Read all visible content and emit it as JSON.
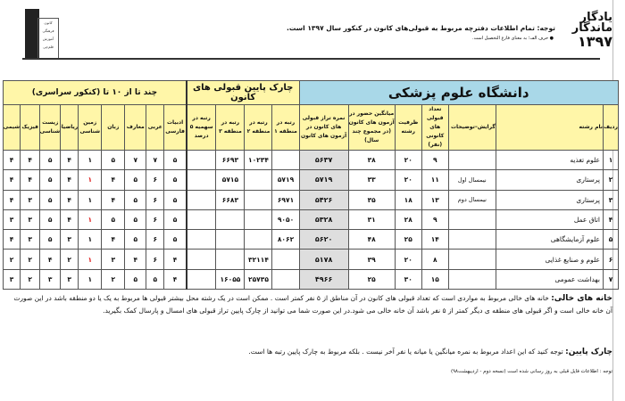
{
  "header": {
    "brand_line1": "یادگار",
    "brand_line2": "ماندگار",
    "brand_year": "۱۳۹۷",
    "notice": "توجه: تمام اطلاعات دفترچه مربوط به قبولی‌های کانون در کنکور سال ۱۳۹۷ است.",
    "subnote": "● حرف الف؛ به معنای فارغ التحصیل است.",
    "logo_text": [
      "کانون",
      "فرهنگی",
      "آموزش",
      "قلم‌چی"
    ]
  },
  "table": {
    "band_university": "دانشگاه علوم پزشکی",
    "band_chark": "چارک پایین قبولی های کانون",
    "band_subjects": "چند تا از ۱۰ تا (کنکور سراسری)",
    "columns": [
      "ردیف",
      "نام رشته",
      "گرایش–توضیحات",
      "تعداد قبولی های کانونی (نفر)",
      "ظرفیت رشته",
      "میانگین حضور در آزمون های کانون (در مجموع چند سال)",
      "نمره تراز قبولی های کانون در آزمون های کانون",
      "رتبه در منطقه ۱",
      "رتبه در منطقه ۲",
      "رتبه در منطقه ۳",
      "رتبه در سهمیه ۵ درصد",
      "ادبیات فارسی",
      "عربی",
      "معارف",
      "زبان",
      "زمین شناسی",
      "ریاضیات",
      "زیست شناسی",
      "فیزیک",
      "شیمی"
    ],
    "rows": [
      {
        "id": "۱",
        "name": "علوم تغذیه",
        "dir": "",
        "count": "۹",
        "cap": "۲۰",
        "avg": "۳۸",
        "score": "۵۶۳۷",
        "r1": "",
        "r2": "۱۰۲۳۴",
        "r3": "۶۶۹۳",
        "r5": "",
        "s": [
          "۵",
          "۷",
          "۷",
          "۵",
          "۱",
          "۴",
          "۵",
          "۴",
          "۴"
        ],
        "red": false
      },
      {
        "id": "۲",
        "name": "پرستاری",
        "dir": "نیمسال اول",
        "count": "۱۱",
        "cap": "۲۰",
        "avg": "۳۳",
        "score": "۵۷۱۹",
        "r1": "۵۷۱۹",
        "r2": "",
        "r3": "۵۷۱۵",
        "r5": "",
        "s": [
          "۵",
          "۶",
          "۵",
          "۴",
          "۱",
          "۴",
          "۵",
          "۴",
          "۴"
        ],
        "red": true
      },
      {
        "id": "۳",
        "name": "پرستاری",
        "dir": "نیمسال دوم",
        "count": "۱۳",
        "cap": "۱۸",
        "avg": "۳۵",
        "score": "۵۴۲۶",
        "r1": "۶۹۷۱",
        "r2": "",
        "r3": "۶۶۸۳",
        "r5": "",
        "s": [
          "۵",
          "۶",
          "۵",
          "۴",
          "۱",
          "۴",
          "۵",
          "۳",
          "۴"
        ],
        "red": false
      },
      {
        "id": "۴",
        "name": "اتاق عمل",
        "dir": "",
        "count": "۹",
        "cap": "۲۸",
        "avg": "۳۱",
        "score": "۵۳۲۸",
        "r1": "۹۰۵۰",
        "r2": "",
        "r3": "",
        "r5": "",
        "s": [
          "۵",
          "۶",
          "۵",
          "۵",
          "۱",
          "۴",
          "۵",
          "۳",
          "۳"
        ],
        "red": true
      },
      {
        "id": "۵",
        "name": "علوم آزمایشگاهی",
        "dir": "",
        "count": "۱۴",
        "cap": "۲۵",
        "avg": "۴۸",
        "score": "۵۶۲۰",
        "r1": "۸۰۶۲",
        "r2": "",
        "r3": "",
        "r5": "",
        "s": [
          "۵",
          "۶",
          "۵",
          "۴",
          "۱",
          "۳",
          "۵",
          "۳",
          "۴"
        ],
        "red": false
      },
      {
        "id": "۶",
        "name": "علوم و صنایع غذایی",
        "dir": "",
        "count": "۸",
        "cap": "۲۰",
        "avg": "۳۹",
        "score": "۵۱۷۸",
        "r1": "",
        "r2": "۳۲۱۱۴",
        "r3": "",
        "r5": "",
        "s": [
          "۴",
          "۶",
          "۴",
          "۳",
          "۱",
          "۲",
          "۴",
          "۲",
          "۲"
        ],
        "red": true
      },
      {
        "id": "۷",
        "name": "بهداشت عمومی",
        "dir": "",
        "count": "۱۵",
        "cap": "۳۰",
        "avg": "۲۵",
        "score": "۴۹۶۶",
        "r1": "",
        "r2": "۲۵۷۳۵",
        "r3": "۱۶۰۵۵",
        "r5": "",
        "s": [
          "۴",
          "۵",
          "۵",
          "۲",
          "۱",
          "۳",
          "۳",
          "۲",
          "۳"
        ],
        "red": false
      }
    ]
  },
  "footer": {
    "empty_title": "خانه های خالی:",
    "empty_text": "خانه های خالی مربوط به مواردی است که تعداد قبولی های کانون در آن مناطق از ۵ نفر کمتر است . ممکن است در یک رشته محل بیشتر قبولی ها مربوط به یک یا دو منطقه باشد در این صورت آن خانه خالی است و اگر قبولی های منطقه ی دیگر کمتر از ۵ نفر باشد آن خانه خالی می شود.در این صورت شما می توانید از چارک پایین تراز قبولی های امسال و پارسال کمک بگیرید.",
    "chark_title": "چارک پایین:",
    "chark_text": "توجه کنید که این اعداد مربوط به نمره میانگین یا میانه یا نفر آخر نیست . بلکه مربوط به چارک پایین رتبه ها است.",
    "update_note": "توجه : اطلاعات فایل قبلی به روز رسانی شده است (نسخه دوم - اردیبهشت۹۸)"
  }
}
